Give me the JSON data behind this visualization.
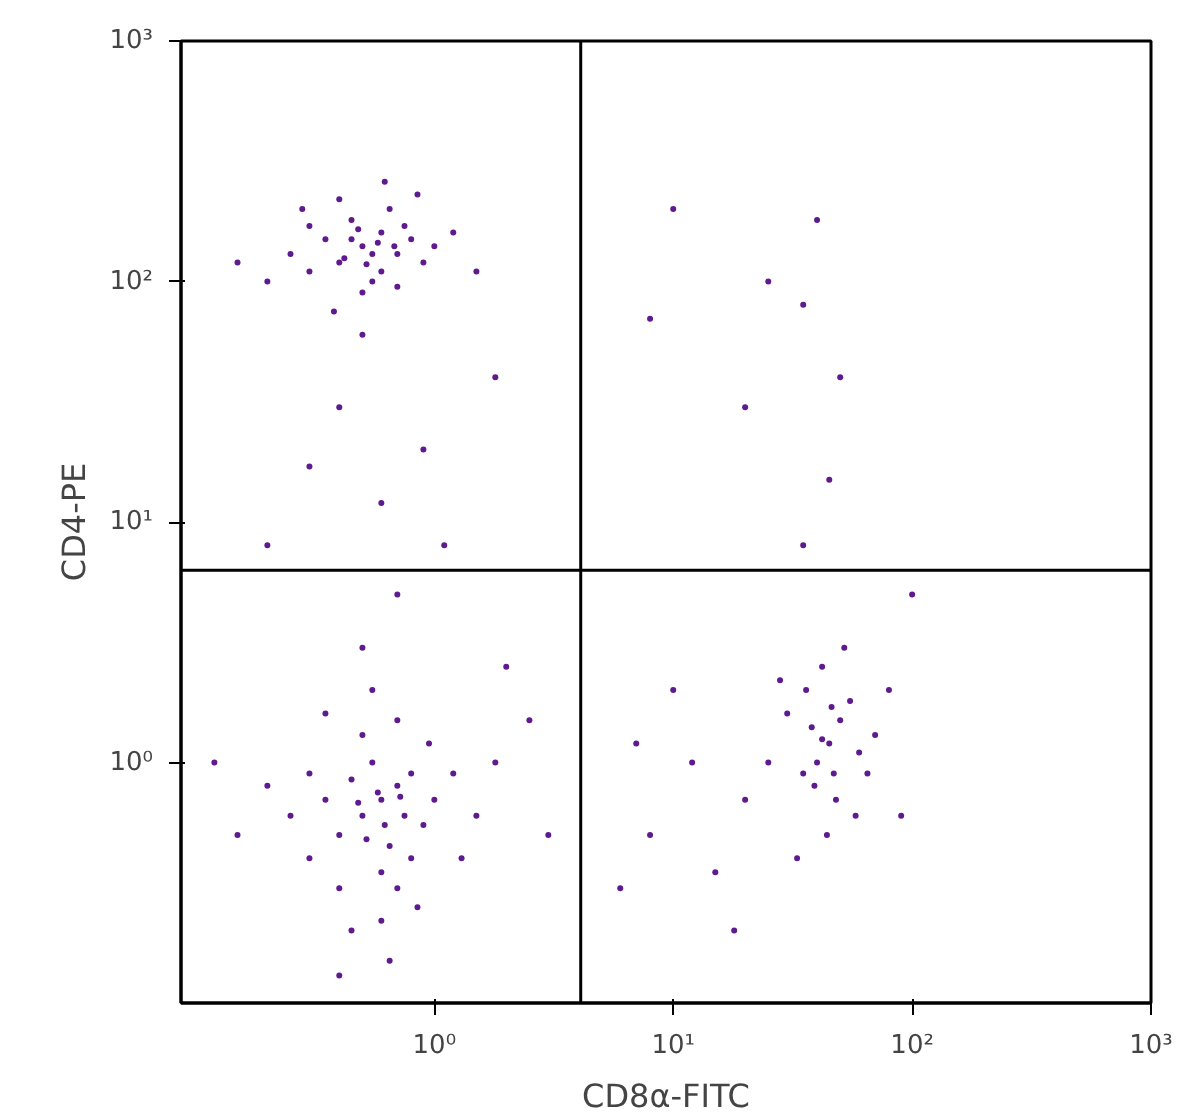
{
  "chart_data": {
    "type": "scatter",
    "xlabel": "CD8α-FITC",
    "ylabel": "CD4-PE",
    "log": "xy",
    "grid": false,
    "marker": "circle",
    "xlim": [
      0.087,
      1000
    ],
    "ylim": [
      0.1,
      1000
    ],
    "xticks": [
      {
        "value": 1,
        "label": "10⁰"
      },
      {
        "value": 10,
        "label": "10¹"
      },
      {
        "value": 100,
        "label": "10²"
      },
      {
        "value": 1000,
        "label": "10³"
      }
    ],
    "yticks": [
      {
        "value": 1,
        "label": "10⁰"
      },
      {
        "value": 10,
        "label": "10¹"
      },
      {
        "value": 100,
        "label": "10²"
      },
      {
        "value": 1000,
        "label": "10³"
      }
    ],
    "ref_lines": [
      {
        "axis": "x",
        "value": 4.1,
        "color": "#000000"
      },
      {
        "axis": "y",
        "value": 6.3,
        "color": "#000000"
      }
    ],
    "series": [
      {
        "color": "#5e1a8e",
        "x": [
          0.5,
          0.4,
          0.6,
          0.7,
          0.3,
          0.45,
          0.55,
          0.8,
          0.35,
          0.65,
          0.25,
          0.9,
          0.5,
          0.4,
          0.75,
          0.2,
          0.6,
          1.0,
          0.3,
          0.55,
          0.45,
          0.7,
          1.2,
          0.15,
          0.85,
          0.38,
          0.62,
          0.5,
          1.5,
          0.28,
          0.48,
          0.58,
          0.42,
          0.68,
          0.52,
          0.3,
          0.6,
          0.9,
          1.1,
          0.4,
          1.8,
          0.2,
          0.7,
          0.6,
          0.5,
          0.7,
          0.4,
          0.8,
          0.55,
          0.65,
          0.45,
          0.75,
          0.35,
          0.9,
          0.5,
          0.6,
          0.3,
          1.0,
          0.7,
          0.4,
          1.2,
          0.25,
          0.8,
          0.55,
          0.6,
          0.2,
          1.5,
          0.45,
          0.95,
          0.35,
          0.7,
          0.15,
          1.8,
          0.5,
          0.65,
          0.3,
          0.85,
          1.3,
          0.58,
          0.62,
          0.48,
          0.72,
          0.52,
          2.5,
          3.0,
          0.12,
          0.4,
          2.0,
          45,
          40,
          50,
          35,
          55,
          42,
          48,
          38,
          60,
          30,
          52,
          44,
          70,
          25,
          36,
          47,
          58,
          33,
          80,
          20,
          42,
          46,
          39,
          65,
          28,
          8,
          12,
          6,
          15,
          10,
          18,
          7,
          100,
          90,
          10,
          20,
          35,
          40,
          45,
          50,
          25,
          8,
          35
        ],
        "values": [
          140,
          120,
          160,
          130,
          110,
          180,
          100,
          150,
          150,
          200,
          130,
          120,
          90,
          220,
          170,
          100,
          110,
          140,
          170,
          130,
          150,
          95,
          160,
          120,
          230,
          75,
          260,
          60,
          110,
          200,
          165,
          145,
          125,
          140,
          118,
          17,
          12,
          20,
          8,
          30,
          40,
          8,
          5,
          0.7,
          0.6,
          0.8,
          0.5,
          0.9,
          1.0,
          0.45,
          0.85,
          0.6,
          0.7,
          0.55,
          1.3,
          0.35,
          0.9,
          0.7,
          1.5,
          0.3,
          0.9,
          0.6,
          0.4,
          2.0,
          0.22,
          0.8,
          0.6,
          0.2,
          1.2,
          1.6,
          0.3,
          0.5,
          1.0,
          3.0,
          0.15,
          0.4,
          0.25,
          0.4,
          0.75,
          0.55,
          0.68,
          0.72,
          0.48,
          1.5,
          0.5,
          1.0,
          0.13,
          2.5,
          1.2,
          1.0,
          1.5,
          0.9,
          1.8,
          2.5,
          0.7,
          1.4,
          1.1,
          1.6,
          3.0,
          0.5,
          1.3,
          1.0,
          2.0,
          0.9,
          0.6,
          0.4,
          2.0,
          0.7,
          1.25,
          1.7,
          0.8,
          0.9,
          2.2,
          0.5,
          1.0,
          0.3,
          0.35,
          2.0,
          0.2,
          1.2,
          5,
          0.6,
          200,
          30,
          80,
          180,
          15,
          40,
          100,
          70,
          8
        ]
      }
    ]
  }
}
